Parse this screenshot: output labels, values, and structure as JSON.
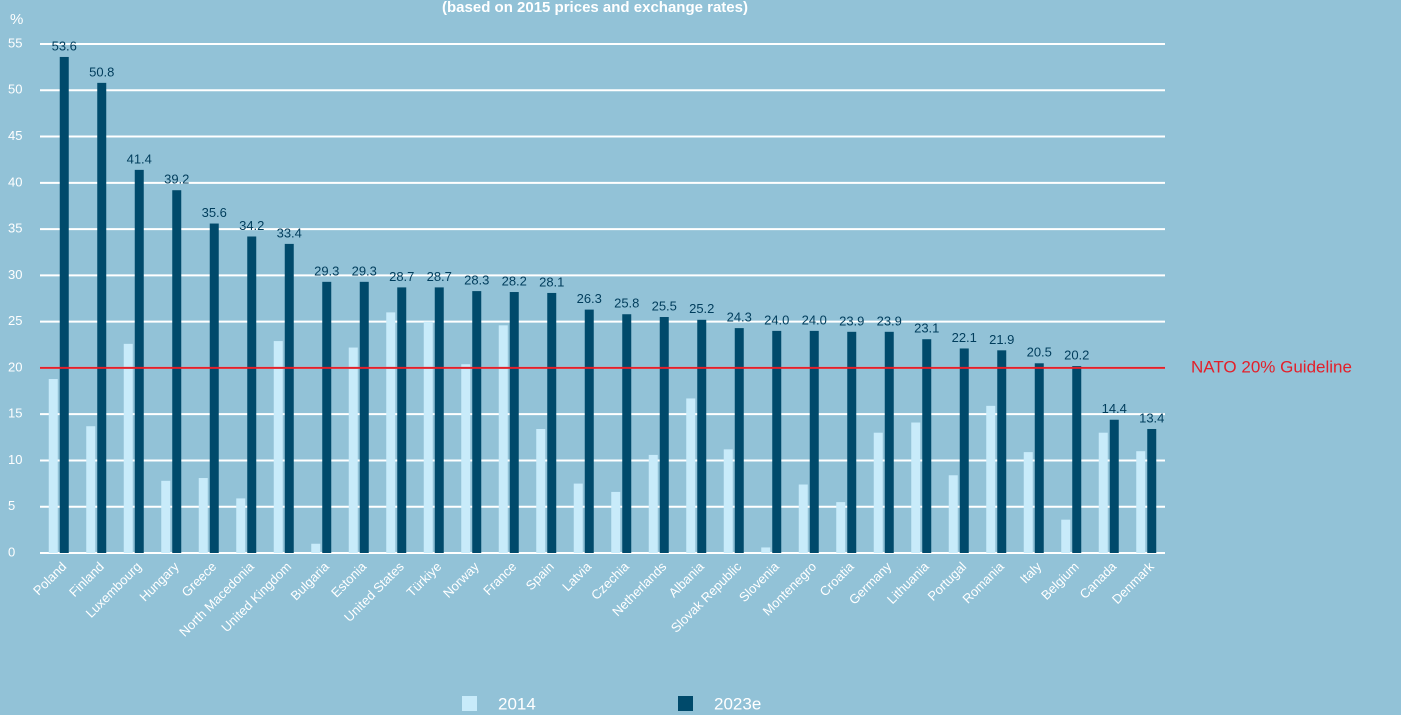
{
  "chart_data": {
    "type": "bar",
    "title": "(based on 2015 prices and exchange rates)",
    "ylabel": "%",
    "categories": [
      "Poland",
      "Finland",
      "Luxembourg",
      "Hungary",
      "Greece",
      "North Macedonia",
      "United Kingdom",
      "Bulgaria",
      "Estonia",
      "United States",
      "Türkiye",
      "Norway",
      "France",
      "Spain",
      "Latvia",
      "Czechia",
      "Netherlands",
      "Albania",
      "Slovak Republic",
      "Slovenia",
      "Montenegro",
      "Croatia",
      "Germany",
      "Lithuania",
      "Portugal",
      "Romania",
      "Italy",
      "Belgium",
      "Canada",
      "Denmark"
    ],
    "series": [
      {
        "name": "2014",
        "color": "#c8ebfa",
        "values": [
          18.8,
          13.7,
          22.6,
          7.8,
          8.1,
          5.9,
          22.9,
          1.0,
          22.2,
          26.0,
          25.0,
          20.4,
          24.6,
          13.4,
          7.5,
          6.6,
          10.6,
          16.7,
          11.2,
          0.6,
          7.4,
          5.5,
          13.0,
          14.1,
          8.4,
          15.9,
          10.9,
          3.6,
          13.0,
          11.0
        ]
      },
      {
        "name": "2023e",
        "color": "#004a6b",
        "values": [
          53.6,
          50.8,
          41.4,
          39.2,
          35.6,
          34.2,
          33.4,
          29.3,
          29.3,
          28.7,
          28.7,
          28.3,
          28.2,
          28.1,
          26.3,
          25.8,
          25.5,
          25.2,
          24.3,
          24.0,
          24.0,
          23.9,
          23.9,
          23.1,
          22.1,
          21.9,
          20.5,
          20.2,
          14.4,
          13.4
        ],
        "value_labels": [
          "53.6",
          "50.8",
          "41.4",
          "39.2",
          "35.6",
          "34.2",
          "33.4",
          "29.3",
          "29.3",
          "28.7",
          "28.7",
          "28.3",
          "28.2",
          "28.1",
          "26.3",
          "25.8",
          "25.5",
          "25.2",
          "24.3",
          "24.0",
          "24.0",
          "23.9",
          "23.9",
          "23.1",
          "22.1",
          "21.9",
          "20.5",
          "20.2",
          "14.4",
          "13.4"
        ]
      }
    ],
    "ylim": [
      0,
      55
    ],
    "yticks": [
      0,
      5,
      10,
      15,
      20,
      25,
      30,
      35,
      40,
      45,
      50,
      55
    ],
    "grid": true,
    "reference_line": {
      "value": 20,
      "label": "NATO 20% Guideline",
      "color": "#e3202a"
    },
    "legend": "bottom"
  }
}
